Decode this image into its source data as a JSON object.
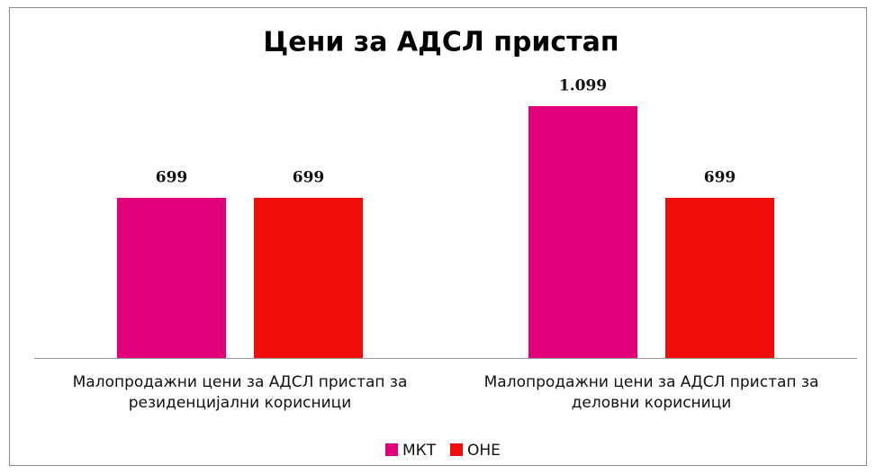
{
  "chart_data": {
    "type": "bar",
    "title": "Цени за АДСЛ пристап",
    "categories": [
      "Малопродажни цени за АДСЛ пристап за резиденцијални корисници",
      "Малопродажни цени за АДСЛ пристап за деловни корисници"
    ],
    "series": [
      {
        "name": "МКТ",
        "color": "#e2007a",
        "values": [
          699,
          1099
        ],
        "value_labels": [
          "699",
          "1.099"
        ]
      },
      {
        "name": "ОНЕ",
        "color": "#f20d0d",
        "values": [
          699,
          699
        ],
        "value_labels": [
          "699",
          "699"
        ]
      }
    ],
    "legend": "bottom"
  }
}
